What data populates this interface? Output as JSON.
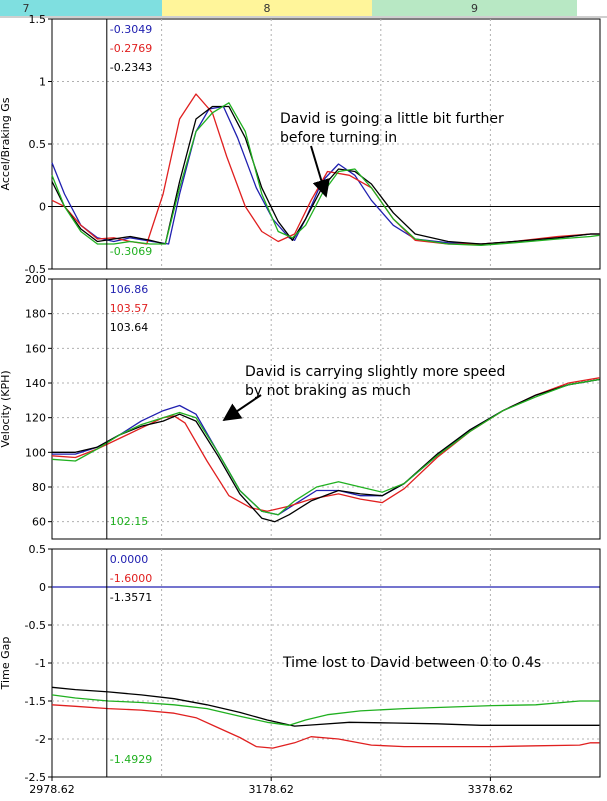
{
  "sector_bar": {
    "sectors": [
      {
        "label": "7",
        "color": "#7fdfe0"
      },
      {
        "label": "8",
        "color": "#fff59a"
      },
      {
        "label": "9",
        "color": "#b8e8c4"
      }
    ]
  },
  "cursor_x": 3028.62,
  "x_axis": {
    "min": 2978.62,
    "max": 3478.62,
    "ticks": [
      "2978.62",
      "3178.62",
      "3378.62"
    ],
    "tick_values": [
      2978.62,
      3178.62,
      3378.62
    ]
  },
  "colors": {
    "blue": "#2020b0",
    "red": "#e02020",
    "black": "#000000",
    "green": "#20b020"
  },
  "chart_data": [
    {
      "type": "line",
      "ylabel": "Accel/Braking Gs",
      "ylim": [
        -0.5,
        1.5
      ],
      "yticks": [
        "1.5",
        "1",
        "0.5",
        "0",
        "-0.5"
      ],
      "ytick_values": [
        1.5,
        1,
        0.5,
        0,
        -0.5
      ],
      "cursor_values": [
        {
          "text": "-0.3049",
          "color": "#2020b0"
        },
        {
          "text": "-0.2769",
          "color": "#e02020"
        },
        {
          "text": "-0.2343",
          "color": "#000000"
        }
      ],
      "bottom_value": {
        "text": "-0.3069",
        "color": "#20b020"
      },
      "annotation": {
        "lines": [
          "David is going a little bit further",
          "before turning in"
        ]
      },
      "series": [
        {
          "color": "#2020b0",
          "x": [
            2978.62,
            2990,
            3005,
            3020,
            3035,
            3050,
            3070,
            3085,
            3095,
            3110,
            3122,
            3135,
            3148,
            3165,
            3180,
            3195,
            3200,
            3210,
            3225,
            3240,
            3255,
            3270,
            3290,
            3310,
            3340,
            3370,
            3400,
            3440,
            3470,
            3478
          ],
          "y": [
            0.35,
            0.1,
            -0.15,
            -0.25,
            -0.28,
            -0.25,
            -0.28,
            -0.3,
            0.1,
            0.6,
            0.78,
            0.8,
            0.55,
            0.15,
            -0.1,
            -0.25,
            -0.27,
            -0.1,
            0.2,
            0.34,
            0.25,
            0.05,
            -0.15,
            -0.26,
            -0.29,
            -0.3,
            -0.28,
            -0.25,
            -0.22,
            -0.22
          ]
        },
        {
          "color": "#e02020",
          "x": [
            2978.62,
            2990,
            3005,
            3020,
            3035,
            3050,
            3065,
            3080,
            3095,
            3110,
            3125,
            3138,
            3155,
            3170,
            3185,
            3200,
            3215,
            3230,
            3250,
            3270,
            3290,
            3310,
            3340,
            3370,
            3400,
            3440,
            3470,
            3478
          ],
          "y": [
            0.05,
            0.0,
            -0.15,
            -0.26,
            -0.25,
            -0.28,
            -0.3,
            0.1,
            0.7,
            0.9,
            0.75,
            0.4,
            0.0,
            -0.2,
            -0.28,
            -0.22,
            0.05,
            0.28,
            0.25,
            0.15,
            -0.1,
            -0.27,
            -0.3,
            -0.3,
            -0.28,
            -0.24,
            -0.22,
            -0.22
          ]
        },
        {
          "color": "#000000",
          "x": [
            2978.62,
            2990,
            3005,
            3020,
            3035,
            3050,
            3068,
            3082,
            3095,
            3110,
            3125,
            3140,
            3155,
            3170,
            3185,
            3198,
            3210,
            3225,
            3240,
            3255,
            3270,
            3290,
            3310,
            3340,
            3370,
            3400,
            3440,
            3470,
            3478
          ],
          "y": [
            0.2,
            0.0,
            -0.18,
            -0.28,
            -0.26,
            -0.24,
            -0.27,
            -0.3,
            0.2,
            0.7,
            0.8,
            0.8,
            0.55,
            0.15,
            -0.12,
            -0.27,
            -0.1,
            0.15,
            0.3,
            0.28,
            0.18,
            -0.05,
            -0.22,
            -0.28,
            -0.3,
            -0.28,
            -0.25,
            -0.22,
            -0.22
          ]
        },
        {
          "color": "#20b020",
          "x": [
            2978.62,
            2990,
            3005,
            3020,
            3035,
            3050,
            3068,
            3082,
            3095,
            3110,
            3125,
            3140,
            3155,
            3170,
            3185,
            3198,
            3210,
            3225,
            3240,
            3255,
            3270,
            3290,
            3310,
            3340,
            3370,
            3400,
            3440,
            3470,
            3478
          ],
          "y": [
            0.25,
            0.0,
            -0.2,
            -0.3,
            -0.3,
            -0.28,
            -0.3,
            -0.3,
            0.15,
            0.6,
            0.75,
            0.83,
            0.6,
            0.1,
            -0.2,
            -0.25,
            -0.15,
            0.1,
            0.28,
            0.3,
            0.15,
            -0.1,
            -0.26,
            -0.3,
            -0.31,
            -0.29,
            -0.26,
            -0.24,
            -0.23
          ]
        }
      ]
    },
    {
      "type": "line",
      "ylabel": "Velocity (KPH)",
      "ylim": [
        50,
        200
      ],
      "yticks": [
        "200",
        "180",
        "160",
        "140",
        "120",
        "100",
        "80",
        "60"
      ],
      "ytick_values": [
        200,
        180,
        160,
        140,
        120,
        100,
        80,
        60
      ],
      "cursor_values": [
        {
          "text": "106.86",
          "color": "#2020b0"
        },
        {
          "text": "103.57",
          "color": "#e02020"
        },
        {
          "text": "103.64",
          "color": "#000000"
        }
      ],
      "bottom_value": {
        "text": "102.15",
        "color": "#20b020"
      },
      "annotation": {
        "lines": [
          "David is carrying slightly more speed",
          "by not braking as much"
        ]
      },
      "series": [
        {
          "color": "#2020b0",
          "x": [
            2978.62,
            3000,
            3020,
            3040,
            3060,
            3080,
            3095,
            3110,
            3130,
            3150,
            3170,
            3185,
            3200,
            3220,
            3240,
            3260,
            3280,
            3300,
            3330,
            3360,
            3390,
            3420,
            3450,
            3478
          ],
          "y": [
            99,
            99,
            103,
            110,
            118,
            124,
            127,
            122,
            100,
            78,
            66,
            64,
            70,
            78,
            78,
            75,
            75,
            82,
            98,
            113,
            124,
            133,
            139,
            142
          ]
        },
        {
          "color": "#e02020",
          "x": [
            2978.62,
            3000,
            3020,
            3040,
            3060,
            3080,
            3090,
            3100,
            3120,
            3140,
            3160,
            3175,
            3195,
            3215,
            3240,
            3260,
            3280,
            3300,
            3330,
            3360,
            3390,
            3420,
            3450,
            3478
          ],
          "y": [
            98,
            97,
            102,
            108,
            114,
            120,
            121,
            117,
            95,
            75,
            68,
            66,
            69,
            73,
            76,
            73,
            71,
            79,
            97,
            112,
            124,
            133,
            140,
            143
          ]
        },
        {
          "color": "#000000",
          "x": [
            2978.62,
            3000,
            3020,
            3040,
            3060,
            3080,
            3095,
            3110,
            3130,
            3150,
            3170,
            3182,
            3195,
            3215,
            3240,
            3260,
            3280,
            3300,
            3330,
            3360,
            3390,
            3420,
            3450,
            3478
          ],
          "y": [
            100,
            100,
            103,
            110,
            115,
            118,
            122,
            118,
            98,
            76,
            62,
            60,
            64,
            72,
            78,
            76,
            75,
            82,
            99,
            113,
            124,
            133,
            139,
            142
          ]
        },
        {
          "color": "#20b020",
          "x": [
            2978.62,
            3000,
            3020,
            3040,
            3060,
            3080,
            3095,
            3110,
            3130,
            3150,
            3170,
            3185,
            3200,
            3220,
            3240,
            3260,
            3280,
            3300,
            3330,
            3360,
            3390,
            3420,
            3450,
            3478
          ],
          "y": [
            96,
            95,
            102,
            110,
            116,
            120,
            123,
            120,
            100,
            78,
            66,
            64,
            72,
            80,
            83,
            80,
            77,
            82,
            98,
            112,
            124,
            132,
            139,
            142
          ]
        }
      ]
    },
    {
      "type": "line",
      "ylabel": "Time Gap",
      "ylim": [
        -2.5,
        0.5
      ],
      "yticks": [
        "0.5",
        "0",
        "-0.5",
        "-1",
        "-1.5",
        "-2",
        "-2.5"
      ],
      "ytick_values": [
        0.5,
        0,
        -0.5,
        -1,
        -1.5,
        -2,
        -2.5
      ],
      "cursor_values": [
        {
          "text": "0.0000",
          "color": "#2020b0"
        },
        {
          "text": "-1.6000",
          "color": "#e02020"
        },
        {
          "text": "-1.3571",
          "color": "#000000"
        }
      ],
      "bottom_value": {
        "text": "-1.4929",
        "color": "#20b020"
      },
      "annotation": {
        "lines": [
          "Time lost to David between 0 to 0.4s"
        ]
      },
      "series": [
        {
          "color": "#2020b0",
          "x": [
            2978.62,
            3478
          ],
          "y": [
            0,
            0
          ]
        },
        {
          "color": "#e02020",
          "x": [
            2978.62,
            3000,
            3030,
            3060,
            3090,
            3110,
            3130,
            3150,
            3165,
            3180,
            3200,
            3215,
            3240,
            3270,
            3300,
            3340,
            3380,
            3420,
            3460,
            3470,
            3478
          ],
          "y": [
            -1.55,
            -1.57,
            -1.6,
            -1.62,
            -1.66,
            -1.72,
            -1.85,
            -1.98,
            -2.1,
            -2.12,
            -2.05,
            -1.97,
            -2.0,
            -2.08,
            -2.1,
            -2.1,
            -2.1,
            -2.09,
            -2.08,
            -2.05,
            -2.05
          ]
        },
        {
          "color": "#000000",
          "x": [
            2978.62,
            3000,
            3030,
            3060,
            3090,
            3120,
            3150,
            3175,
            3200,
            3220,
            3250,
            3290,
            3330,
            3370,
            3410,
            3450,
            3478
          ],
          "y": [
            -1.32,
            -1.35,
            -1.38,
            -1.42,
            -1.47,
            -1.55,
            -1.65,
            -1.75,
            -1.83,
            -1.81,
            -1.78,
            -1.79,
            -1.8,
            -1.82,
            -1.82,
            -1.82,
            -1.82
          ]
        },
        {
          "color": "#20b020",
          "x": [
            2978.62,
            3000,
            3030,
            3060,
            3090,
            3120,
            3150,
            3175,
            3195,
            3210,
            3230,
            3260,
            3300,
            3340,
            3380,
            3420,
            3460,
            3478
          ],
          "y": [
            -1.42,
            -1.46,
            -1.5,
            -1.52,
            -1.55,
            -1.6,
            -1.7,
            -1.78,
            -1.82,
            -1.75,
            -1.68,
            -1.63,
            -1.6,
            -1.58,
            -1.56,
            -1.55,
            -1.5,
            -1.5
          ]
        }
      ]
    }
  ]
}
